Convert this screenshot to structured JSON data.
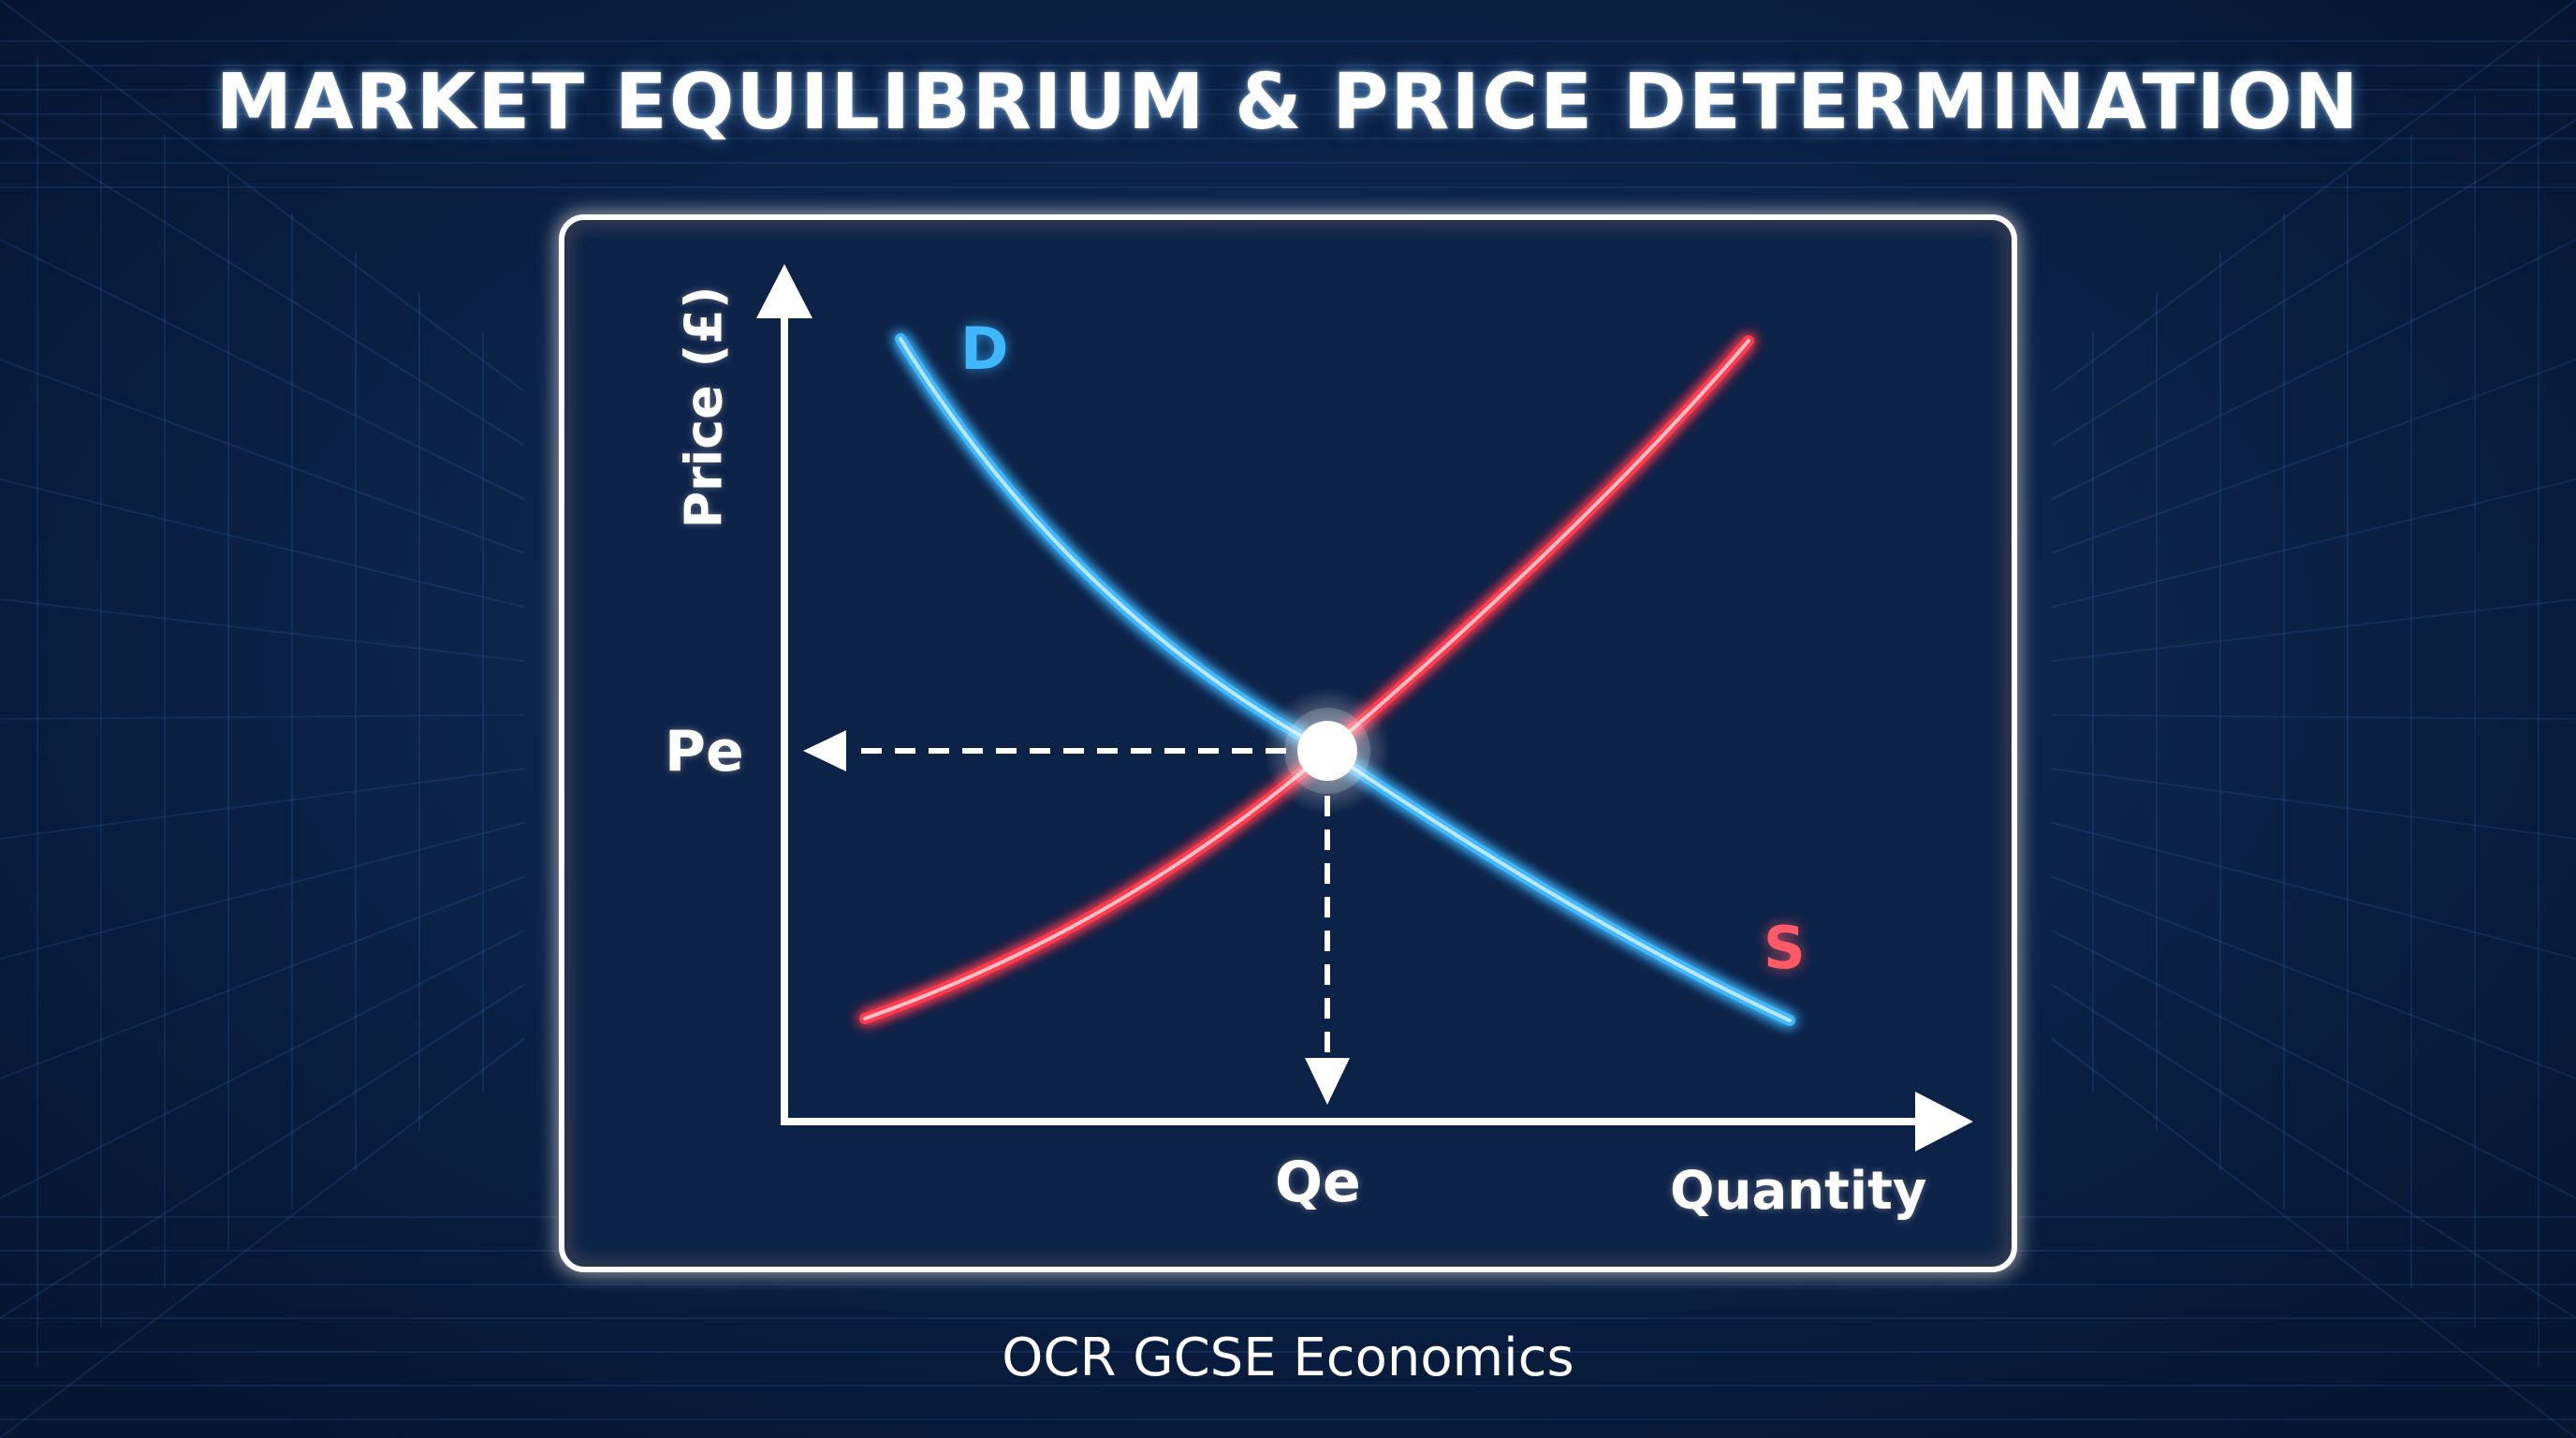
{
  "title": "MARKET EQUILIBRIUM & PRICE DETERMINATION",
  "footer": "OCR GCSE Economics",
  "axes": {
    "y_label": "Price (£)",
    "x_label": "Quantity"
  },
  "curves": {
    "demand_label": "D",
    "supply_label": "S"
  },
  "equilibrium": {
    "price_label": "Pe",
    "quantity_label": "Qe"
  },
  "colors": {
    "background": "#081a36",
    "demand": "#3fb8ff",
    "supply": "#ff3b4e",
    "panel_border": "#ffffff",
    "text": "#ffffff"
  }
}
